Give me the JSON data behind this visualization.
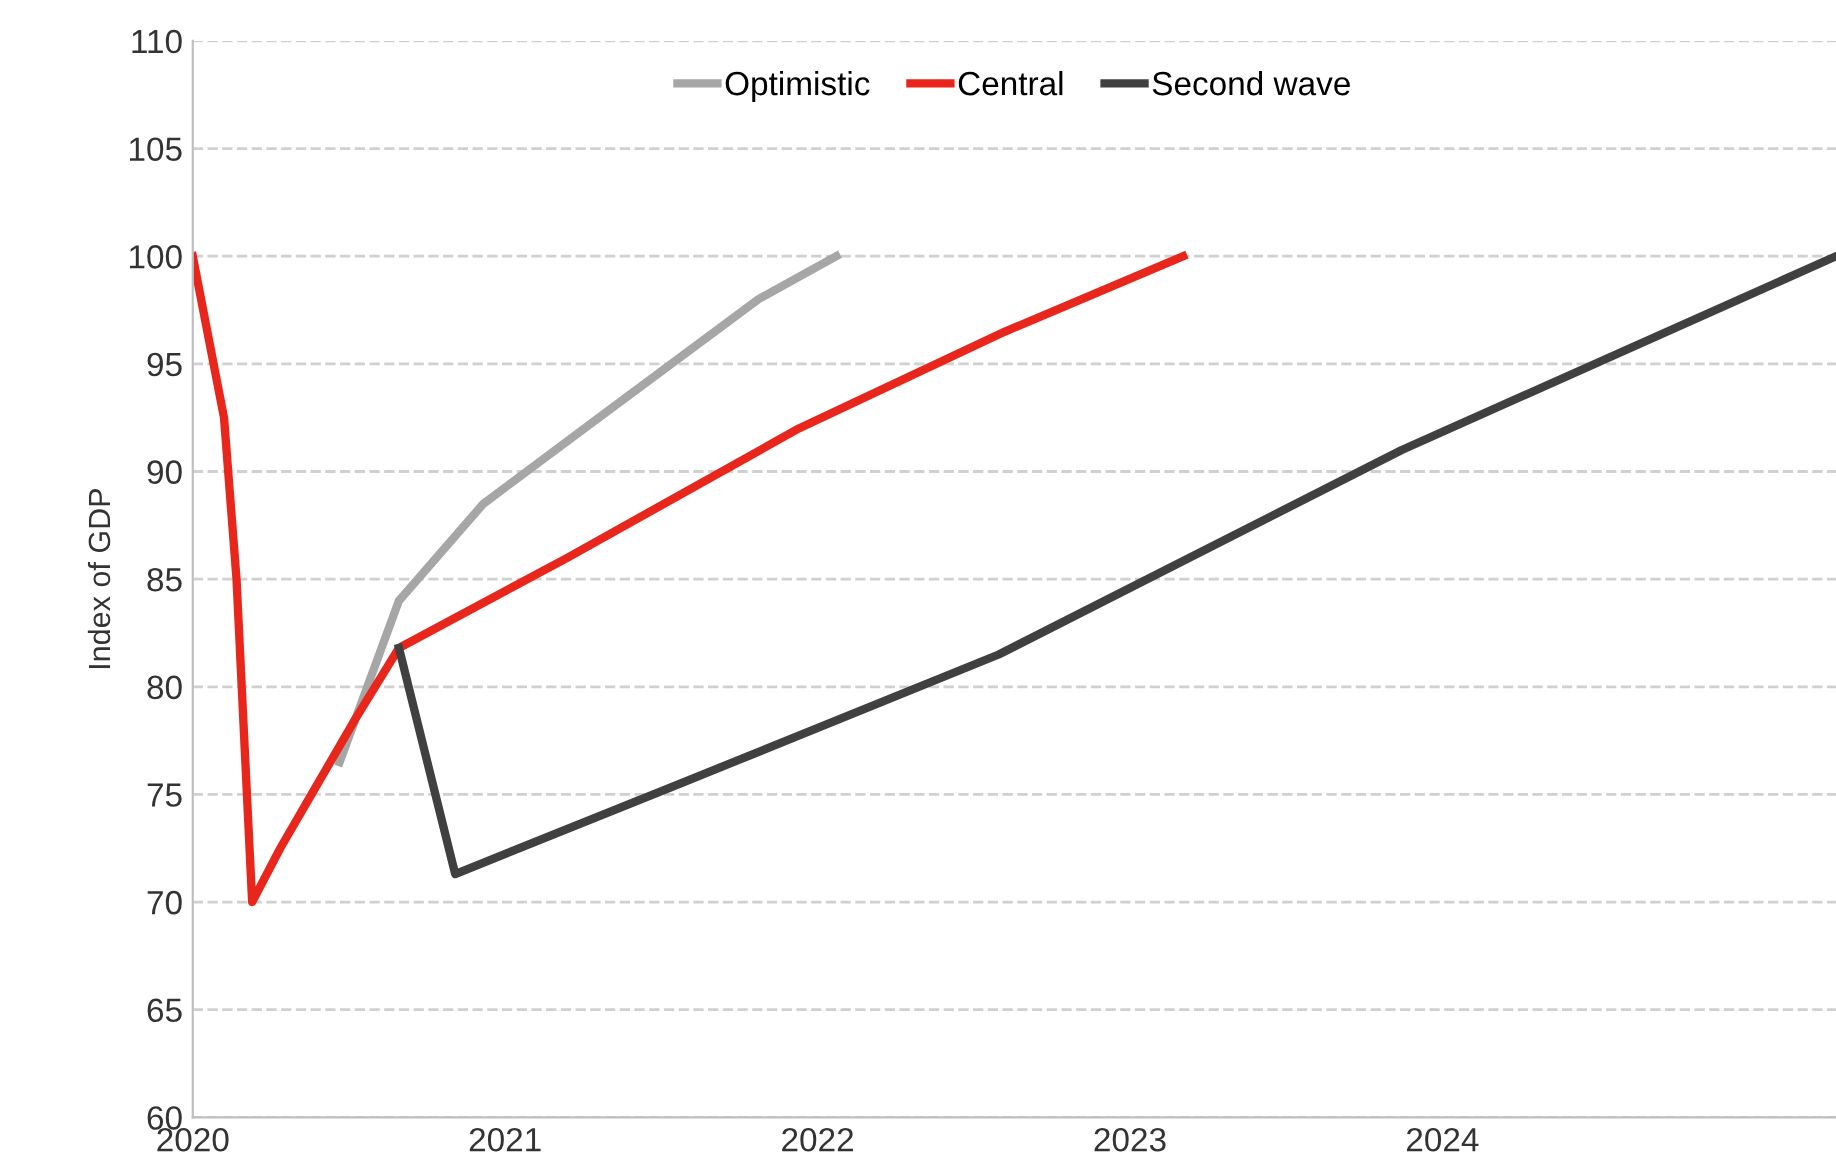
{
  "chart_data": {
    "type": "line",
    "ylabel": "Index of GDP",
    "xlim": [
      2020,
      2025.26
    ],
    "xticks": [
      2020,
      2021,
      2022,
      2023,
      2024
    ],
    "ylim": [
      60,
      110
    ],
    "yticks": [
      60,
      65,
      70,
      75,
      80,
      85,
      90,
      95,
      100,
      105,
      110
    ],
    "grid": "y",
    "legend": "top",
    "line_style": "solid",
    "marker": "none",
    "series": [
      {
        "name": "Optimistic",
        "color": "#a6a6a6",
        "x": [
          2020.47,
          2020.66,
          2020.93,
          2021.3,
          2021.81,
          2022.06
        ],
        "values": [
          76.5,
          84,
          88.5,
          92.5,
          98,
          100
        ]
      },
      {
        "name": "Central",
        "color": "#e8261c",
        "x": [
          2020.0,
          2020.1,
          2020.14,
          2020.19,
          2020.28,
          2020.38,
          2020.52,
          2020.66,
          2021.2,
          2021.94,
          2022.6,
          2023.17
        ],
        "values": [
          100,
          92.5,
          85,
          70,
          72.5,
          75,
          78.5,
          81.8,
          86,
          92,
          96.5,
          100
        ]
      },
      {
        "name": "Second wave",
        "color": "#404040",
        "x": [
          2020.66,
          2020.84,
          2021.56,
          2022.58,
          2023.87,
          2025.26
        ],
        "values": [
          81.8,
          71.3,
          75.5,
          81.5,
          91,
          100
        ]
      }
    ]
  }
}
